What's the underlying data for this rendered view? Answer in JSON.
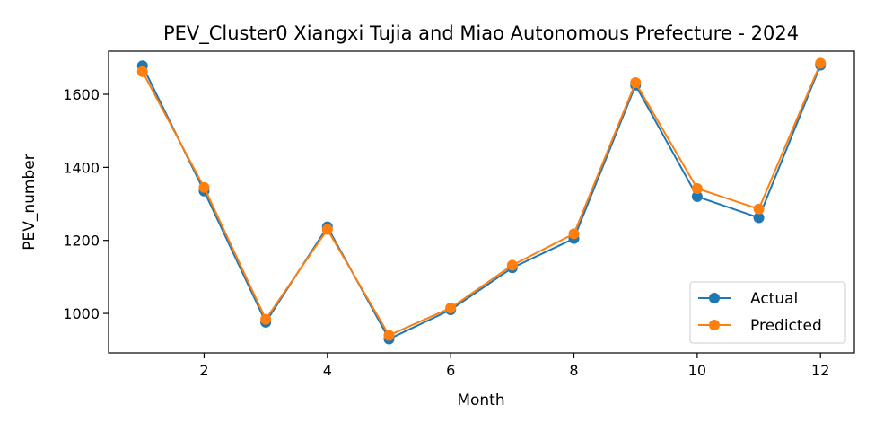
{
  "chart_data": {
    "type": "line",
    "title": "PEV_Cluster0 Xiangxi Tujia and Miao Autonomous Prefecture - 2024",
    "xlabel": "Month",
    "ylabel": "PEV_number",
    "x": [
      1,
      2,
      3,
      4,
      5,
      6,
      7,
      8,
      9,
      10,
      11,
      12
    ],
    "xlim": [
      0.45,
      12.55
    ],
    "ylim": [
      892,
      1718
    ],
    "xticks": [
      2,
      4,
      6,
      8,
      10,
      12
    ],
    "yticks": [
      1000,
      1200,
      1400,
      1600
    ],
    "grid": false,
    "legend_position": "lower-right",
    "series": [
      {
        "name": "Actual",
        "color": "#1f77b4",
        "values": [
          1678,
          1335,
          976,
          1237,
          930,
          1010,
          1125,
          1205,
          1625,
          1320,
          1262,
          1680
        ]
      },
      {
        "name": "Predicted",
        "color": "#ff7f0e",
        "values": [
          1662,
          1345,
          984,
          1230,
          940,
          1015,
          1132,
          1218,
          1632,
          1342,
          1286,
          1685
        ]
      }
    ]
  }
}
